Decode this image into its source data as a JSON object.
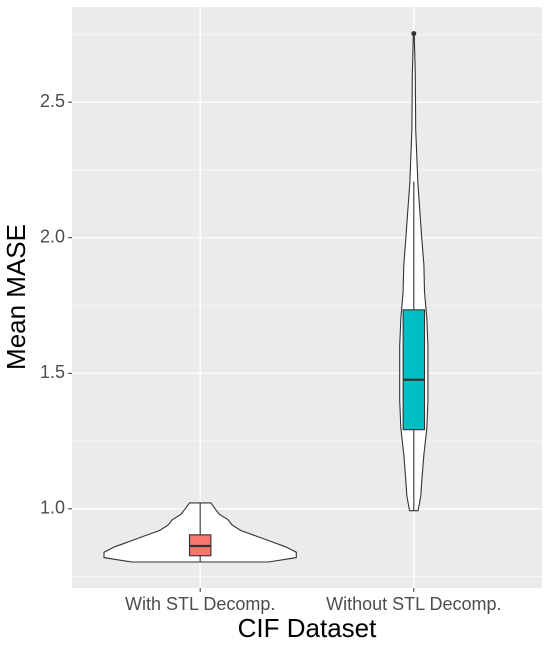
{
  "chart_data": {
    "type": "violin",
    "x_label": "CIF Dataset",
    "y_label": "Mean MASE",
    "categories": [
      "With STL Decomp.",
      "Without STL Decomp."
    ],
    "colors": [
      "#F8766D",
      "#00BFC4"
    ],
    "ylim": [
      0.708,
      2.851
    ],
    "yticks": [
      {
        "value": 1,
        "label": "1.0"
      },
      1.5,
      {
        "value": 2,
        "label": "2.0"
      },
      2.5
    ],
    "grid": true,
    "boxes": [
      {
        "whisker_low": 0.804,
        "q1": 0.827,
        "median": 0.863,
        "q3": 0.904,
        "whisker_high": 1.022,
        "outliers": []
      },
      {
        "whisker_low": 0.993,
        "q1": 1.292,
        "median": 1.476,
        "q3": 1.734,
        "whisker_high": 2.207,
        "outliers": [
          2.753
        ]
      }
    ],
    "violins": [
      {
        "y": [
          0.804,
          0.82,
          0.84,
          0.86,
          0.88,
          0.9,
          0.92,
          0.94,
          0.96,
          0.98,
          1.0,
          1.022
        ],
        "half_width": [
          0.32,
          0.45,
          0.45,
          0.4,
          0.33,
          0.26,
          0.19,
          0.15,
          0.13,
          0.09,
          0.07,
          0.05
        ]
      },
      {
        "y": [
          0.993,
          1.05,
          1.1,
          1.2,
          1.3,
          1.4,
          1.5,
          1.6,
          1.7,
          1.8,
          1.9,
          2.0,
          2.1,
          2.2,
          2.4,
          2.6,
          2.753
        ],
        "half_width": [
          0.02,
          0.033,
          0.037,
          0.047,
          0.061,
          0.066,
          0.066,
          0.066,
          0.061,
          0.05,
          0.047,
          0.037,
          0.028,
          0.019,
          0.009,
          0.007,
          0.002
        ]
      }
    ]
  }
}
